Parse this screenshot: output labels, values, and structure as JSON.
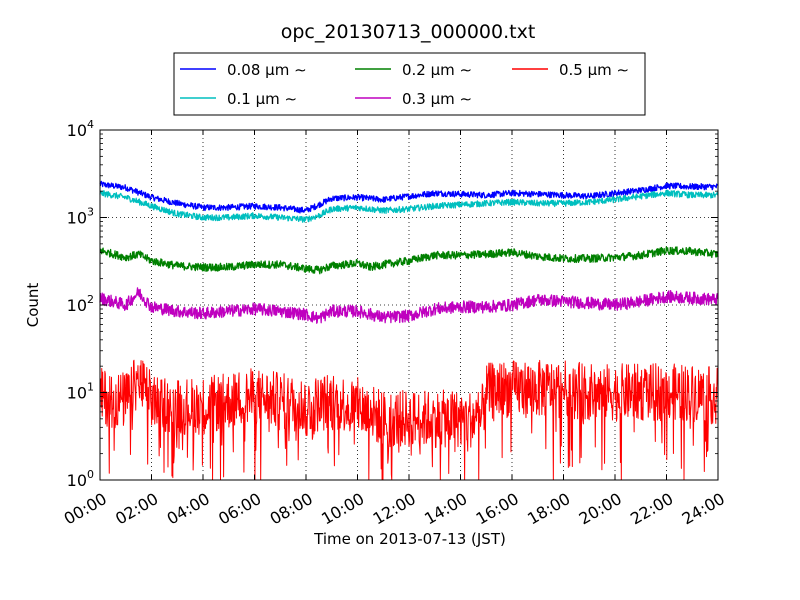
{
  "chart_data": {
    "type": "line",
    "title": "opc_20130713_000000.txt",
    "xlabel": "Time on 2013-07-13 (JST)",
    "ylabel": "Count",
    "x_ticks": [
      "00:00",
      "02:00",
      "04:00",
      "06:00",
      "08:00",
      "10:00",
      "12:00",
      "14:00",
      "16:00",
      "18:00",
      "20:00",
      "22:00",
      "24:00"
    ],
    "y_ticks": [
      {
        "base": "10",
        "exp": "0",
        "value": 1
      },
      {
        "base": "10",
        "exp": "1",
        "value": 10
      },
      {
        "base": "10",
        "exp": "2",
        "value": 100
      },
      {
        "base": "10",
        "exp": "3",
        "value": 1000
      },
      {
        "base": "10",
        "exp": "4",
        "value": 10000
      }
    ],
    "y_scale": "log",
    "x_range_hours": [
      0,
      24
    ],
    "ylim": [
      1,
      10000
    ],
    "grid": true,
    "legend_position": "top-center",
    "series": [
      {
        "name": "0.08 μm ∼",
        "color": "#0000ff",
        "hours": [
          0,
          1,
          2,
          3,
          4,
          5,
          6,
          7,
          8,
          8.5,
          9,
          10,
          11,
          12,
          13,
          14,
          15,
          16,
          17,
          18,
          19,
          20,
          21,
          22,
          23,
          24
        ],
        "values": [
          2400,
          2200,
          1700,
          1450,
          1300,
          1300,
          1350,
          1300,
          1200,
          1400,
          1650,
          1700,
          1600,
          1750,
          1900,
          1850,
          1800,
          1900,
          1850,
          1800,
          1750,
          1900,
          2050,
          2300,
          2250,
          2250
        ]
      },
      {
        "name": "0.1 μm ∼",
        "color": "#00bfbf",
        "hours": [
          0,
          1,
          2,
          3,
          4,
          5,
          6,
          7,
          8,
          8.5,
          9,
          10,
          11,
          12,
          13,
          14,
          15,
          16,
          17,
          18,
          19,
          20,
          21,
          22,
          23,
          24
        ],
        "values": [
          1900,
          1700,
          1350,
          1100,
          1000,
          1000,
          1050,
          1000,
          950,
          1050,
          1250,
          1300,
          1200,
          1250,
          1350,
          1400,
          1450,
          1500,
          1450,
          1450,
          1500,
          1600,
          1750,
          1900,
          1800,
          1800
        ]
      },
      {
        "name": "0.2 μm ∼",
        "color": "#008000",
        "hours": [
          0,
          1,
          1.5,
          2,
          3,
          4,
          5,
          6,
          7,
          8,
          8.5,
          9,
          10,
          10.5,
          11,
          12,
          13,
          14,
          15,
          16,
          17,
          18,
          19,
          20,
          21,
          22,
          23,
          24
        ],
        "values": [
          420,
          350,
          380,
          320,
          280,
          270,
          270,
          290,
          290,
          260,
          250,
          280,
          300,
          270,
          290,
          320,
          370,
          370,
          380,
          400,
          360,
          340,
          340,
          350,
          370,
          420,
          410,
          380
        ]
      },
      {
        "name": "0.3 μm ∼",
        "color": "#bf00bf",
        "hours": [
          0,
          1,
          1.5,
          2,
          3,
          4,
          5,
          6,
          7,
          8,
          8.5,
          9,
          10,
          11,
          12,
          13,
          14,
          15,
          16,
          17,
          18,
          19,
          20,
          21,
          22,
          23,
          24
        ],
        "values": [
          120,
          100,
          140,
          95,
          85,
          80,
          85,
          90,
          85,
          78,
          70,
          85,
          85,
          72,
          75,
          90,
          95,
          95,
          100,
          115,
          110,
          105,
          100,
          110,
          125,
          120,
          115
        ]
      },
      {
        "name": "0.5 μm ∼",
        "color": "#ff0000",
        "hours": [
          0,
          1,
          1.5,
          2,
          3,
          4,
          5,
          6,
          7,
          8,
          9,
          10,
          11,
          12,
          13,
          14,
          14.8,
          15,
          15.5,
          16,
          17,
          18,
          19,
          20,
          21,
          22,
          23,
          24
        ],
        "values": [
          9,
          8,
          14,
          8,
          7,
          7,
          8,
          9,
          8,
          7,
          8,
          7,
          5,
          5,
          5,
          5,
          5,
          10,
          11,
          11,
          11,
          11,
          10,
          10,
          10,
          10,
          10,
          9
        ]
      }
    ]
  }
}
